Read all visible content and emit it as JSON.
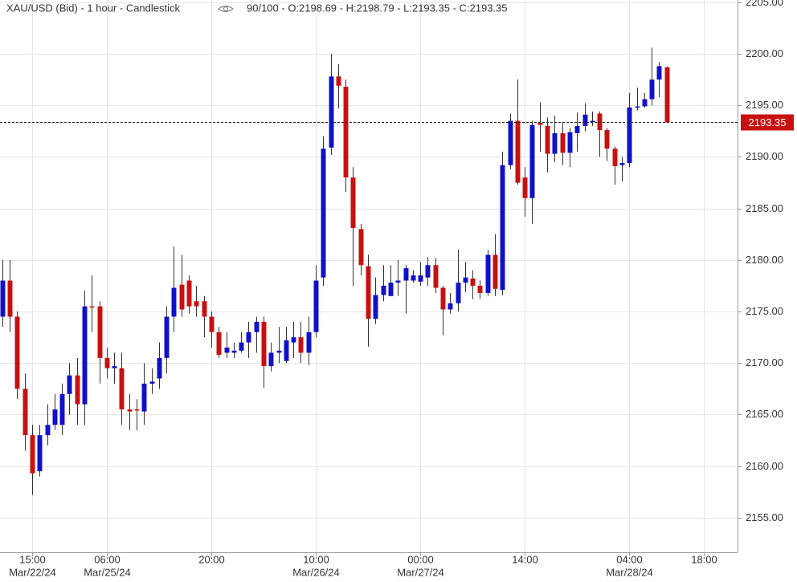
{
  "chart_data": {
    "type": "candlestick",
    "title": "XAU/USD (Bid) - 1 hour - Candlestick",
    "info": "90/100 - O:2198.69 - H:2198.79 - L:2193.35 - C:2193.35",
    "up_color": "#1010c8",
    "down_color": "#c81010",
    "open": [
      2174.5,
      2178,
      2174.5,
      2167.5,
      2163,
      2159.5,
      2163,
      2164,
      2164,
      2167,
      2168.8,
      2166,
      2175.5,
      2175.5,
      2170.5,
      2169.5,
      2169.5,
      2165.5,
      2165.5,
      2165.3,
      2168,
      2168.5,
      2170.5,
      2174.5,
      2177.6,
      2178,
      2176,
      2176,
      2174.5,
      2173,
      2171,
      2171,
      2171.2,
      2172,
      2173,
      2174,
      2169.7,
      2171,
      2170.2,
      2172,
      2172.5,
      2171,
      2173,
      2178.3,
      2190.9,
      2197.8,
      2196.8,
      2188,
      2183,
      2179.4,
      2174.3,
      2176.6,
      2176.5,
      2177.8,
      2178,
      2178,
      2177.9,
      2178.3,
      2179.5,
      2177.3,
      2175.2,
      2175.8,
      2177.8,
      2178.2,
      2177.5,
      2176.8,
      2180.5,
      2177.1,
      2189.2,
      2193.5,
      2188,
      2186,
      2193.3,
      2193,
      2190.3,
      2192.3,
      2190.4,
      2192.3,
      2193,
      2193.4,
      2194.2,
      2192.6,
      2190.8,
      2189.2,
      2189.4,
      2194.8,
      2194.9,
      2195.6,
      2197.5,
      2198.69
    ],
    "high": [
      2180,
      2180,
      2175,
      2169,
      2164,
      2164,
      2166,
      2167,
      2168,
      2170,
      2170.5,
      2177,
      2178.5,
      2176,
      2171.5,
      2171,
      2171,
      2167,
      2166.5,
      2170,
      2169.5,
      2172,
      2175.5,
      2181.3,
      2180.5,
      2178.5,
      2177.5,
      2176.5,
      2175,
      2173.5,
      2173,
      2172,
      2173,
      2174,
      2174.5,
      2174.5,
      2172,
      2173.5,
      2173.5,
      2174,
      2174,
      2174.5,
      2179.5,
      2192,
      2200,
      2199,
      2197.5,
      2189,
      2183.5,
      2180.5,
      2178.3,
      2179.5,
      2179.5,
      2180,
      2179.5,
      2179,
      2179.8,
      2180.3,
      2180.2,
      2177.5,
      2176.8,
      2181,
      2179.8,
      2179,
      2178,
      2181,
      2182.5,
      2190.5,
      2194.2,
      2197.5,
      2189,
      2193.5,
      2195.3,
      2193.8,
      2194,
      2193.4,
      2192.8,
      2194.3,
      2195.2,
      2194.4,
      2194.4,
      2192.8,
      2191,
      2190,
      2196.2,
      2196.7,
      2196.2,
      2200.6,
      2199.2,
      2198.79
    ],
    "low": [
      2173.5,
      2173,
      2166.5,
      2161.5,
      2157.2,
      2159,
      2162,
      2163.5,
      2163,
      2165,
      2164,
      2164,
      2173,
      2168,
      2168.5,
      2168,
      2164,
      2163.5,
      2163.5,
      2164,
      2167,
      2167.5,
      2169,
      2173,
      2174.5,
      2174.8,
      2174.5,
      2172.5,
      2171.5,
      2170.5,
      2170.5,
      2170.5,
      2171,
      2170.5,
      2171,
      2167.6,
      2169.2,
      2170,
      2170,
      2170.5,
      2170,
      2169.8,
      2172.5,
      2177.5,
      2190.2,
      2194.7,
      2186.6,
      2177.5,
      2178.5,
      2171.6,
      2173.8,
      2176,
      2176.5,
      2176.5,
      2174.8,
      2177.8,
      2177.5,
      2177.5,
      2176.8,
      2172.7,
      2174.8,
      2175,
      2176.9,
      2176.2,
      2176.2,
      2176.5,
      2176.5,
      2176.6,
      2188.8,
      2187.3,
      2184.2,
      2183.5,
      2190.5,
      2188.5,
      2189.5,
      2189.2,
      2189,
      2190.5,
      2192.5,
      2193,
      2190,
      2189.6,
      2187.3,
      2187.6,
      2189,
      2194.5,
      2194.8,
      2195,
      2195.8,
      2193.35
    ],
    "close": [
      2178,
      2174.5,
      2167.5,
      2163,
      2159.3,
      2163,
      2164,
      2165.5,
      2167,
      2168.8,
      2166,
      2175.5,
      2175.4,
      2170.5,
      2169.5,
      2169.7,
      2165.5,
      2165.3,
      2165.4,
      2168,
      2168.2,
      2170.5,
      2174.5,
      2177.3,
      2175.2,
      2175.5,
      2175.5,
      2174.5,
      2173,
      2170.8,
      2171.5,
      2171.2,
      2172,
      2173,
      2174,
      2169.7,
      2171,
      2171.2,
      2172.2,
      2172.5,
      2171,
      2173,
      2178,
      2190.8,
      2197.8,
      2196.9,
      2188,
      2183.1,
      2179.5,
      2174.3,
      2176.6,
      2177.5,
      2177.8,
      2178,
      2179.2,
      2178.5,
      2178.5,
      2179.5,
      2177.3,
      2175.2,
      2175.8,
      2177.8,
      2178.3,
      2177.5,
      2176.8,
      2180.5,
      2177.2,
      2189.2,
      2193.5,
      2187.5,
      2186,
      2193.1,
      2193.1,
      2190.3,
      2192.3,
      2190.4,
      2192.4,
      2193,
      2194.1,
      2193.5,
      2192.6,
      2190.8,
      2189.1,
      2189.4,
      2194.8,
      2194.9,
      2195.6,
      2197.5,
      2198.8,
      2193.35
    ],
    "last_price": 2193.35,
    "xlim": [
      -0.3,
      98.5
    ],
    "xticks": [
      {
        "value": 4,
        "label": "15:00",
        "date": "Mar/22/24"
      },
      {
        "value": 14,
        "label": "06:00",
        "date": "Mar/25/24"
      },
      {
        "value": 28,
        "label": "20:00"
      },
      {
        "value": 42,
        "label": "10:00",
        "date": "Mar/26/24"
      },
      {
        "value": 56,
        "label": "00:00",
        "date": "Mar/27/24"
      },
      {
        "value": 70,
        "label": "14:00"
      },
      {
        "value": 84,
        "label": "04:00",
        "date": "Mar/28/24"
      },
      {
        "value": 94,
        "label": "18:00"
      }
    ],
    "ylim": [
      2151.64,
      2205.22
    ],
    "yticks": [
      {
        "value": 2155,
        "label": "2155.00"
      },
      {
        "value": 2160,
        "label": "2160.00"
      },
      {
        "value": 2165,
        "label": "2165.00"
      },
      {
        "value": 2170,
        "label": "2170.00"
      },
      {
        "value": 2175,
        "label": "2175.00"
      },
      {
        "value": 2180,
        "label": "2180.00"
      },
      {
        "value": 2185,
        "label": "2185.00"
      },
      {
        "value": 2190,
        "label": "2190.00"
      },
      {
        "value": 2195,
        "label": "2195.00"
      },
      {
        "value": 2200,
        "label": "2200.00"
      },
      {
        "value": 2205,
        "label": "2205.00"
      }
    ],
    "grid": true
  }
}
